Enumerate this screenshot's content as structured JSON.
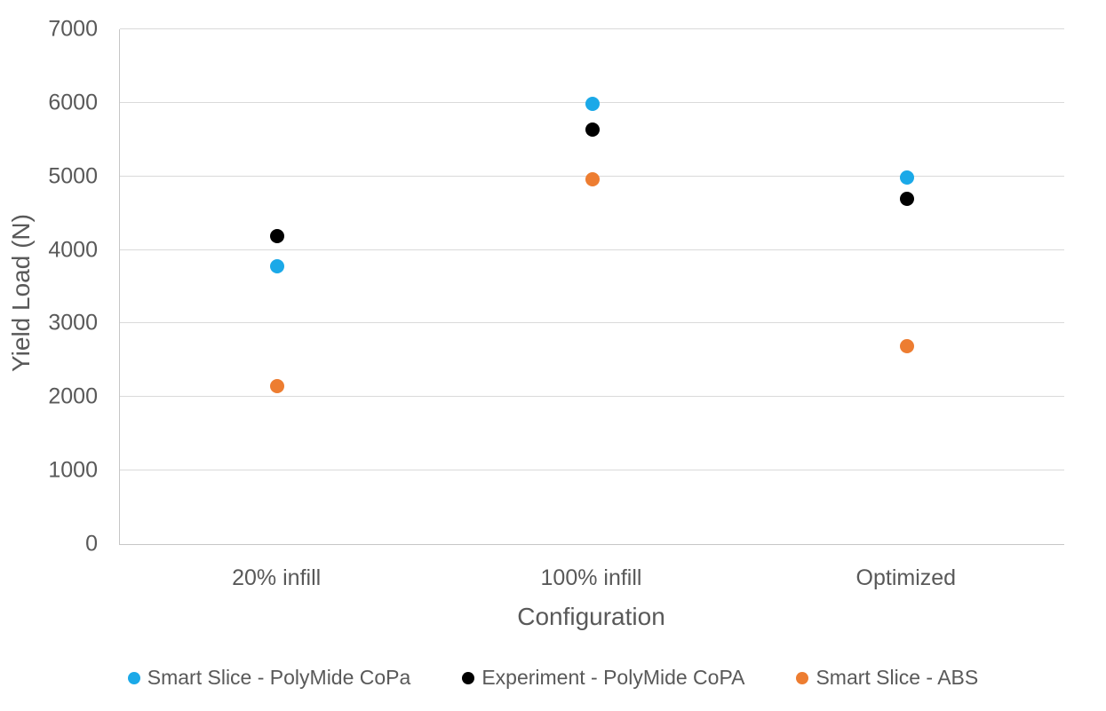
{
  "chart_data": {
    "type": "scatter",
    "xlabel": "Configuration",
    "ylabel": "Yield Load (N)",
    "categories": [
      "20% infill",
      "100% infill",
      "Optimized"
    ],
    "series": [
      {
        "name": "Smart Slice - PolyMide CoPa",
        "color": "#1BA9E8",
        "values": [
          3780,
          5990,
          4990
        ]
      },
      {
        "name": "Experiment - PolyMide CoPA",
        "color": "#000000",
        "values": [
          4190,
          5640,
          4690
        ]
      },
      {
        "name": "Smart Slice - ABS",
        "color": "#ED7D31",
        "values": [
          2150,
          4960,
          2690
        ]
      }
    ],
    "ylim": [
      0,
      7000
    ],
    "yticks": [
      0,
      1000,
      2000,
      3000,
      4000,
      5000,
      6000,
      7000
    ],
    "grid": true,
    "legend_position": "bottom"
  },
  "colors": {
    "text": "#595959",
    "gridline": "#DADADA",
    "axis_line": "#C6C6C6",
    "background": "#FFFFFF"
  }
}
